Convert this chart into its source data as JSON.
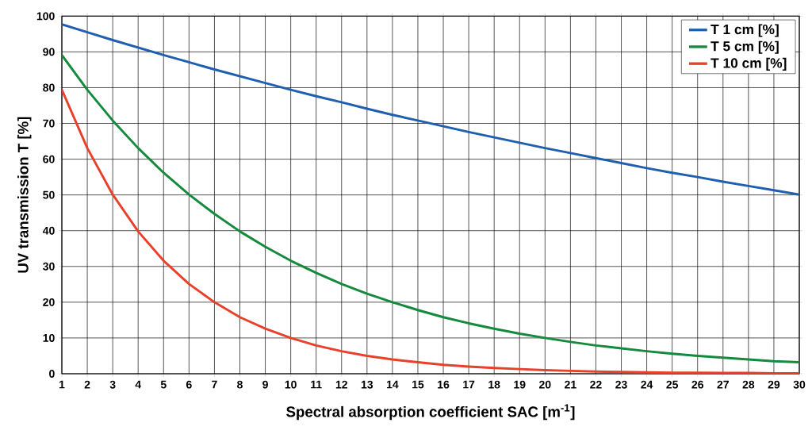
{
  "chart_data": {
    "type": "line",
    "xlabel": "Spectral absorption coefficient SAC [m$^{-1}$]",
    "ylabel": "UV transmission T [%]",
    "x": [
      1,
      2,
      3,
      4,
      5,
      6,
      7,
      8,
      9,
      10,
      11,
      12,
      13,
      14,
      15,
      16,
      17,
      18,
      19,
      20,
      21,
      22,
      23,
      24,
      25,
      26,
      27,
      28,
      29,
      30
    ],
    "series": [
      {
        "name": "T 1 cm [%]",
        "color": "#1f5fb0",
        "values": [
          97.7,
          95.5,
          93.3,
          91.2,
          89.1,
          87.1,
          85.1,
          83.2,
          81.3,
          79.4,
          77.6,
          75.9,
          74.1,
          72.4,
          70.8,
          69.2,
          67.6,
          66.1,
          64.6,
          63.1,
          61.7,
          60.3,
          58.9,
          57.5,
          56.2,
          55,
          53.7,
          52.5,
          51.3,
          50.1
        ]
      },
      {
        "name": "T 5 cm [%]",
        "color": "#138a3c",
        "values": [
          89.1,
          79.4,
          70.8,
          63.1,
          56.2,
          50.1,
          44.7,
          39.8,
          35.5,
          31.6,
          28.2,
          25.1,
          22.4,
          20,
          17.8,
          15.8,
          14.1,
          12.6,
          11.2,
          10,
          8.9,
          7.9,
          7.1,
          6.3,
          5.6,
          5,
          4.5,
          4,
          3.5,
          3.2
        ]
      },
      {
        "name": "T 10 cm [%]",
        "color": "#e8402a",
        "values": [
          79.4,
          63.1,
          50.1,
          39.8,
          31.6,
          25.1,
          20,
          15.8,
          12.6,
          10,
          7.9,
          6.3,
          5,
          4,
          3.2,
          2.5,
          2,
          1.6,
          1.3,
          1,
          0.8,
          0.6,
          0.5,
          0.4,
          0.3,
          0.3,
          0.2,
          0.2,
          0.1,
          0.1
        ]
      }
    ],
    "xlim": [
      1,
      30
    ],
    "ylim": [
      0,
      100
    ],
    "xticks": [
      1,
      2,
      3,
      4,
      5,
      6,
      7,
      8,
      9,
      10,
      11,
      12,
      13,
      14,
      15,
      16,
      17,
      18,
      19,
      20,
      21,
      22,
      23,
      24,
      25,
      26,
      27,
      28,
      29,
      30
    ],
    "yticks": [
      0,
      10,
      20,
      30,
      40,
      50,
      60,
      70,
      80,
      90,
      100
    ],
    "grid": true,
    "legend": "top right",
    "marker": "none",
    "line_style": "solid"
  }
}
